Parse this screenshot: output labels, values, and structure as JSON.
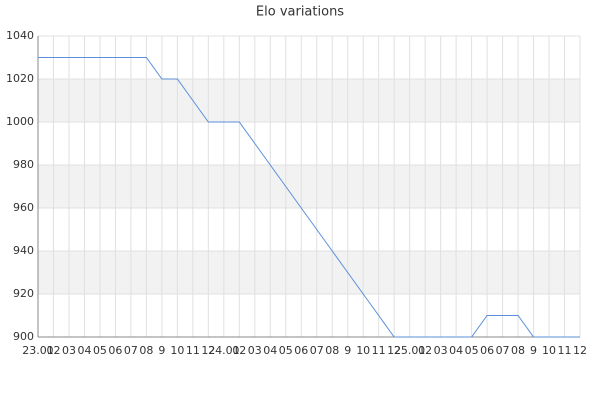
{
  "chart_data": {
    "type": "line",
    "title": "Elo variations",
    "categories": [
      "23.01",
      "02",
      "03",
      "04",
      "05",
      "06",
      "07",
      "08",
      "9",
      "10",
      "11",
      "12",
      "24.01",
      "02",
      "03",
      "04",
      "05",
      "06",
      "07",
      "08",
      "9",
      "10",
      "11",
      "12",
      "25.01",
      "02",
      "03",
      "04",
      "05",
      "06",
      "07",
      "08",
      "9",
      "10",
      "11",
      "12"
    ],
    "series": [
      {
        "name": "Elo",
        "color": "#5b8fd9",
        "values": [
          1030,
          1030,
          1030,
          1030,
          1030,
          1030,
          1030,
          1030,
          1020,
          1020,
          1010,
          1000,
          1000,
          1000,
          990,
          980,
          970,
          960,
          950,
          940,
          930,
          920,
          910,
          900,
          900,
          900,
          900,
          900,
          900,
          910,
          910,
          910,
          900,
          900,
          900,
          900
        ]
      }
    ],
    "ylim": [
      900,
      1040
    ],
    "yticks": [
      900,
      920,
      940,
      960,
      980,
      1000,
      1020,
      1040
    ],
    "grid": true
  }
}
